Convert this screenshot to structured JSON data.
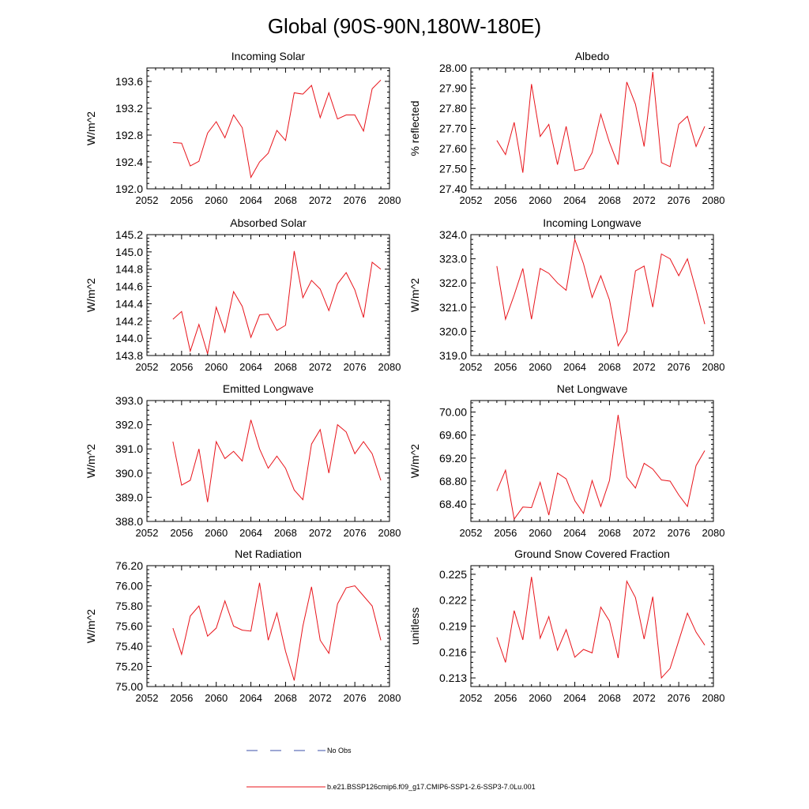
{
  "page": {
    "title": "Global (90S-90N,180W-180E)"
  },
  "legend": {
    "obs_label": "No Obs",
    "obs_color": "#3b4fa8",
    "model_label": "b.e21.BSSP126cmip6.f09_g17.CMIP6-SSP1-2.6-SSP3-7.0Lu.001",
    "model_color": "#e8141b"
  },
  "chart_data": [
    {
      "type": "line",
      "title": "Incoming Solar",
      "ylabel": "W/m^2",
      "xlim": [
        2052,
        2080
      ],
      "ylim": [
        192.0,
        193.8
      ],
      "xticks": [
        2052,
        2056,
        2060,
        2064,
        2068,
        2072,
        2076,
        2080
      ],
      "xtick_labels": [
        "2052",
        "2056",
        "2060",
        "2064",
        "2068",
        "2072",
        "2076",
        "2080"
      ],
      "yticks": [
        192.0,
        192.4,
        192.8,
        193.2,
        193.6
      ],
      "ytick_labels": [
        "192.0",
        "192.4",
        "192.8",
        "193.2",
        "193.6"
      ],
      "x": [
        2055,
        2056,
        2057,
        2058,
        2059,
        2060,
        2061,
        2062,
        2063,
        2064,
        2065,
        2066,
        2067,
        2068,
        2069,
        2070,
        2071,
        2072,
        2073,
        2074,
        2075,
        2076,
        2077,
        2078,
        2079
      ],
      "series": [
        {
          "values": [
            192.69,
            192.68,
            192.34,
            192.41,
            192.83,
            193.0,
            192.76,
            193.1,
            192.91,
            192.17,
            192.4,
            192.53,
            192.87,
            192.72,
            193.43,
            193.41,
            193.54,
            193.06,
            193.43,
            193.04,
            193.1,
            193.1,
            192.86,
            193.49,
            193.62
          ]
        }
      ]
    },
    {
      "type": "line",
      "title": "Albedo",
      "ylabel": "% reflected",
      "xlim": [
        2052,
        2080
      ],
      "ylim": [
        27.4,
        28.0
      ],
      "xticks": [
        2052,
        2056,
        2060,
        2064,
        2068,
        2072,
        2076,
        2080
      ],
      "xtick_labels": [
        "2052",
        "2056",
        "2060",
        "2064",
        "2068",
        "2072",
        "2076",
        "2080"
      ],
      "yticks": [
        27.4,
        27.5,
        27.6,
        27.7,
        27.8,
        27.9,
        28.0
      ],
      "ytick_labels": [
        "27.40",
        "27.50",
        "27.60",
        "27.70",
        "27.80",
        "27.90",
        "28.00"
      ],
      "x": [
        2055,
        2056,
        2057,
        2058,
        2059,
        2060,
        2061,
        2062,
        2063,
        2064,
        2065,
        2066,
        2067,
        2068,
        2069,
        2070,
        2071,
        2072,
        2073,
        2074,
        2075,
        2076,
        2077,
        2078,
        2079
      ],
      "series": [
        {
          "values": [
            27.64,
            27.57,
            27.73,
            27.48,
            27.92,
            27.66,
            27.72,
            27.52,
            27.71,
            27.49,
            27.5,
            27.58,
            27.77,
            27.63,
            27.52,
            27.93,
            27.82,
            27.61,
            27.98,
            27.53,
            27.51,
            27.72,
            27.76,
            27.61,
            27.71
          ]
        }
      ]
    },
    {
      "type": "line",
      "title": "Absorbed Solar",
      "ylabel": "W/m^2",
      "xlim": [
        2052,
        2080
      ],
      "ylim": [
        143.8,
        145.2
      ],
      "xticks": [
        2052,
        2056,
        2060,
        2064,
        2068,
        2072,
        2076,
        2080
      ],
      "xtick_labels": [
        "2052",
        "2056",
        "2060",
        "2064",
        "2068",
        "2072",
        "2076",
        "2080"
      ],
      "yticks": [
        143.8,
        144.0,
        144.2,
        144.4,
        144.6,
        144.8,
        145.0,
        145.2
      ],
      "ytick_labels": [
        "143.8",
        "144.0",
        "144.2",
        "144.4",
        "144.6",
        "144.8",
        "145.0",
        "145.2"
      ],
      "x": [
        2055,
        2056,
        2057,
        2058,
        2059,
        2060,
        2061,
        2062,
        2063,
        2064,
        2065,
        2066,
        2067,
        2068,
        2069,
        2070,
        2071,
        2072,
        2073,
        2074,
        2075,
        2076,
        2077,
        2078,
        2079
      ],
      "series": [
        {
          "values": [
            144.22,
            144.31,
            143.85,
            144.16,
            143.82,
            144.36,
            144.07,
            144.54,
            144.37,
            144.01,
            144.27,
            144.28,
            144.09,
            144.15,
            145.01,
            144.47,
            144.67,
            144.57,
            144.32,
            144.63,
            144.76,
            144.56,
            144.24,
            144.88,
            144.8
          ]
        }
      ]
    },
    {
      "type": "line",
      "title": "Incoming Longwave",
      "ylabel": "W/m^2",
      "xlim": [
        2052,
        2080
      ],
      "ylim": [
        319.0,
        324.0
      ],
      "xticks": [
        2052,
        2056,
        2060,
        2064,
        2068,
        2072,
        2076,
        2080
      ],
      "xtick_labels": [
        "2052",
        "2056",
        "2060",
        "2064",
        "2068",
        "2072",
        "2076",
        "2080"
      ],
      "yticks": [
        319.0,
        320.0,
        321.0,
        322.0,
        323.0,
        324.0
      ],
      "ytick_labels": [
        "319.0",
        "320.0",
        "321.0",
        "322.0",
        "323.0",
        "324.0"
      ],
      "x": [
        2055,
        2056,
        2057,
        2058,
        2059,
        2060,
        2061,
        2062,
        2063,
        2064,
        2065,
        2066,
        2067,
        2068,
        2069,
        2070,
        2071,
        2072,
        2073,
        2074,
        2075,
        2076,
        2077,
        2078,
        2079
      ],
      "series": [
        {
          "values": [
            322.7,
            320.5,
            321.5,
            322.6,
            320.5,
            322.6,
            322.4,
            322.0,
            321.7,
            323.8,
            322.8,
            321.4,
            322.3,
            321.3,
            319.4,
            320.0,
            322.5,
            322.7,
            321.0,
            323.2,
            323.0,
            322.3,
            323.0,
            321.7,
            320.3
          ]
        }
      ]
    },
    {
      "type": "line",
      "title": "Emitted Longwave",
      "ylabel": "W/m^2",
      "xlim": [
        2052,
        2080
      ],
      "ylim": [
        388.0,
        393.0
      ],
      "xticks": [
        2052,
        2056,
        2060,
        2064,
        2068,
        2072,
        2076,
        2080
      ],
      "xtick_labels": [
        "2052",
        "2056",
        "2060",
        "2064",
        "2068",
        "2072",
        "2076",
        "2080"
      ],
      "yticks": [
        388.0,
        389.0,
        390.0,
        391.0,
        392.0,
        393.0
      ],
      "ytick_labels": [
        "388.0",
        "389.0",
        "390.0",
        "391.0",
        "392.0",
        "393.0"
      ],
      "x": [
        2055,
        2056,
        2057,
        2058,
        2059,
        2060,
        2061,
        2062,
        2063,
        2064,
        2065,
        2066,
        2067,
        2068,
        2069,
        2070,
        2071,
        2072,
        2073,
        2074,
        2075,
        2076,
        2077,
        2078,
        2079
      ],
      "series": [
        {
          "values": [
            391.3,
            389.5,
            389.7,
            391.0,
            388.8,
            391.3,
            390.6,
            390.9,
            390.5,
            392.2,
            391.0,
            390.2,
            390.7,
            390.2,
            389.3,
            388.9,
            391.2,
            391.8,
            390.0,
            392.0,
            391.7,
            390.8,
            391.3,
            390.8,
            389.7
          ]
        }
      ]
    },
    {
      "type": "line",
      "title": "Net Longwave",
      "ylabel": "W/m^2",
      "xlim": [
        2052,
        2080
      ],
      "ylim": [
        68.1,
        70.2
      ],
      "xticks": [
        2052,
        2056,
        2060,
        2064,
        2068,
        2072,
        2076,
        2080
      ],
      "xtick_labels": [
        "2052",
        "2056",
        "2060",
        "2064",
        "2068",
        "2072",
        "2076",
        "2080"
      ],
      "yticks": [
        68.4,
        68.8,
        69.2,
        69.6,
        70.0
      ],
      "ytick_labels": [
        "68.40",
        "68.80",
        "69.20",
        "69.60",
        "70.00"
      ],
      "x": [
        2055,
        2056,
        2057,
        2058,
        2059,
        2060,
        2061,
        2062,
        2063,
        2064,
        2065,
        2066,
        2067,
        2068,
        2069,
        2070,
        2071,
        2072,
        2073,
        2074,
        2075,
        2076,
        2077,
        2078,
        2079
      ],
      "series": [
        {
          "values": [
            68.63,
            68.99,
            68.14,
            68.35,
            68.34,
            68.78,
            68.21,
            68.94,
            68.84,
            68.46,
            68.24,
            68.81,
            68.36,
            68.81,
            69.95,
            68.87,
            68.68,
            69.11,
            69.01,
            68.82,
            68.8,
            68.56,
            68.36,
            69.07,
            69.33
          ]
        }
      ]
    },
    {
      "type": "line",
      "title": "Net Radiation",
      "ylabel": "W/m^2",
      "xlim": [
        2052,
        2080
      ],
      "ylim": [
        75.0,
        76.2
      ],
      "xticks": [
        2052,
        2056,
        2060,
        2064,
        2068,
        2072,
        2076,
        2080
      ],
      "xtick_labels": [
        "2052",
        "2056",
        "2060",
        "2064",
        "2068",
        "2072",
        "2076",
        "2080"
      ],
      "yticks": [
        75.0,
        75.2,
        75.4,
        75.6,
        75.8,
        76.0,
        76.2
      ],
      "ytick_labels": [
        "75.00",
        "75.20",
        "75.40",
        "75.60",
        "75.80",
        "76.00",
        "76.20"
      ],
      "x": [
        2055,
        2056,
        2057,
        2058,
        2059,
        2060,
        2061,
        2062,
        2063,
        2064,
        2065,
        2066,
        2067,
        2068,
        2069,
        2070,
        2071,
        2072,
        2073,
        2074,
        2075,
        2076,
        2077,
        2078,
        2079
      ],
      "series": [
        {
          "values": [
            75.58,
            75.32,
            75.7,
            75.8,
            75.5,
            75.58,
            75.85,
            75.6,
            75.56,
            75.55,
            76.03,
            75.46,
            75.73,
            75.35,
            75.06,
            75.6,
            75.99,
            75.46,
            75.33,
            75.82,
            75.98,
            76.0,
            75.9,
            75.8,
            75.46
          ]
        }
      ]
    },
    {
      "type": "line",
      "title": "Ground Snow Covered Fraction",
      "ylabel": "unitless",
      "xlim": [
        2052,
        2080
      ],
      "ylim": [
        0.212,
        0.226
      ],
      "xticks": [
        2052,
        2056,
        2060,
        2064,
        2068,
        2072,
        2076,
        2080
      ],
      "xtick_labels": [
        "2052",
        "2056",
        "2060",
        "2064",
        "2068",
        "2072",
        "2076",
        "2080"
      ],
      "yticks": [
        0.213,
        0.216,
        0.219,
        0.222,
        0.225
      ],
      "ytick_labels": [
        "0.213",
        "0.216",
        "0.219",
        "0.222",
        "0.225"
      ],
      "x": [
        2055,
        2056,
        2057,
        2058,
        2059,
        2060,
        2061,
        2062,
        2063,
        2064,
        2065,
        2066,
        2067,
        2068,
        2069,
        2070,
        2071,
        2072,
        2073,
        2074,
        2075,
        2076,
        2077,
        2078,
        2079
      ],
      "series": [
        {
          "values": [
            0.2177,
            0.2148,
            0.2208,
            0.2174,
            0.2247,
            0.2176,
            0.2201,
            0.2162,
            0.2186,
            0.2154,
            0.2163,
            0.2159,
            0.2212,
            0.2196,
            0.2153,
            0.2242,
            0.2223,
            0.2175,
            0.2224,
            0.213,
            0.2141,
            0.2173,
            0.2205,
            0.2183,
            0.2168
          ]
        }
      ]
    }
  ]
}
